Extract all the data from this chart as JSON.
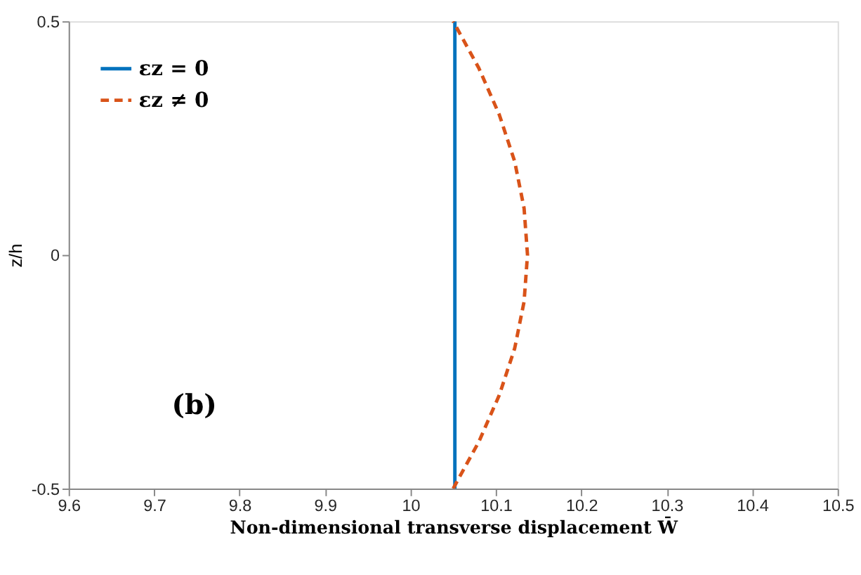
{
  "chart_data": {
    "type": "line",
    "xlabel": "Non-dimensional transverse displacement W̄",
    "ylabel": "z/h",
    "annotations": [
      "(b)"
    ],
    "series": [
      {
        "name": "εz = 0",
        "color": "#0072bd",
        "line_style": "solid",
        "x": [
          10.052,
          10.052
        ],
        "values": [
          -0.5,
          0.5
        ]
      },
      {
        "name": "εz ≠ 0",
        "color": "#d95319",
        "line_style": "dashed",
        "x": [
          10.05,
          10.08,
          10.104,
          10.122,
          10.133,
          10.137,
          10.133,
          10.122,
          10.104,
          10.08,
          10.05
        ],
        "values": [
          -0.5,
          -0.4,
          -0.3,
          -0.2,
          -0.1,
          0,
          0.1,
          0.2,
          0.3,
          0.4,
          0.5
        ]
      }
    ],
    "xlim": [
      9.6,
      10.5
    ],
    "xticks": [
      9.6,
      9.7,
      9.8,
      9.9,
      10,
      10.1,
      10.2,
      10.3,
      10.4,
      10.5
    ],
    "ylim": [
      -0.5,
      0.5
    ],
    "yticks": [
      -0.5,
      0,
      0.5
    ],
    "grid": false,
    "legend": "top left",
    "marker": "none"
  }
}
